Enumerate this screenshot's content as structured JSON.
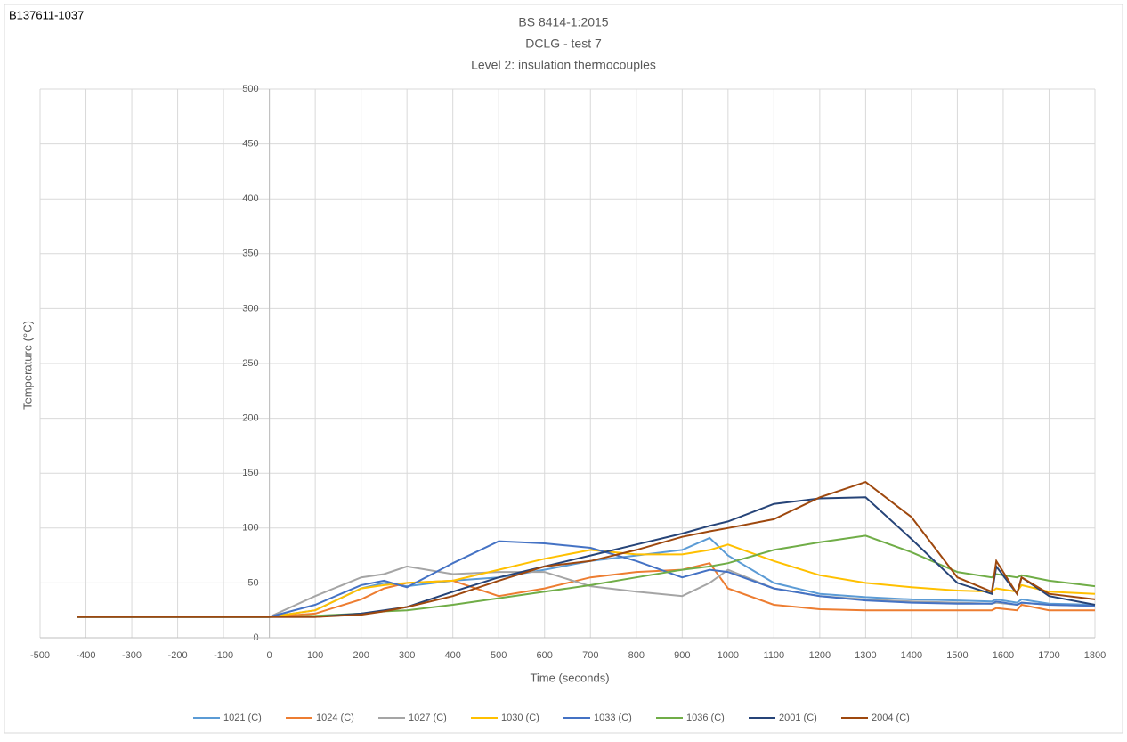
{
  "chart_data": {
    "type": "line",
    "corner_label": "B137611-1037",
    "title": [
      "BS 8414-1:2015",
      "DCLG - test 7",
      "Level 2: insulation thermocouples"
    ],
    "x_label": "Time (seconds)",
    "y_label": "Temperature (°C)",
    "xlim": [
      -500,
      1800
    ],
    "xticks": [
      -500,
      -400,
      -300,
      -200,
      -100,
      0,
      100,
      200,
      300,
      400,
      500,
      600,
      700,
      800,
      900,
      1000,
      1100,
      1200,
      1300,
      1400,
      1500,
      1600,
      1700,
      1800
    ],
    "ylim": [
      0,
      500
    ],
    "yticks": [
      0,
      50,
      100,
      150,
      200,
      250,
      300,
      350,
      400,
      450,
      500
    ],
    "grid": true,
    "legend": "bottom",
    "x": [
      -420,
      0,
      100,
      200,
      250,
      300,
      400,
      500,
      600,
      700,
      800,
      900,
      960,
      1000,
      1100,
      1200,
      1300,
      1400,
      1500,
      1575,
      1585,
      1630,
      1640,
      1700,
      1800
    ],
    "series": [
      {
        "name": "1021 (C)",
        "color": "#5b9bd5",
        "values": [
          19,
          19,
          25,
          45,
          50,
          47,
          52,
          55,
          62,
          70,
          75,
          80,
          91,
          75,
          50,
          40,
          37,
          35,
          34,
          33,
          35,
          32,
          35,
          31,
          30
        ]
      },
      {
        "name": "1024 (C)",
        "color": "#ed7d31",
        "values": [
          19,
          19,
          22,
          35,
          45,
          50,
          52,
          38,
          45,
          55,
          60,
          62,
          68,
          45,
          30,
          26,
          25,
          25,
          25,
          25,
          27,
          25,
          30,
          25,
          25
        ]
      },
      {
        "name": "1027 (C)",
        "color": "#a5a5a5",
        "values": [
          19,
          19,
          38,
          55,
          58,
          65,
          58,
          60,
          60,
          47,
          42,
          38,
          50,
          62,
          45,
          38,
          35,
          33,
          32,
          31,
          32,
          30,
          32,
          30,
          29
        ]
      },
      {
        "name": "1030 (C)",
        "color": "#ffc000",
        "values": [
          19,
          19,
          25,
          45,
          48,
          50,
          52,
          62,
          72,
          80,
          76,
          76,
          80,
          85,
          70,
          57,
          50,
          46,
          43,
          42,
          45,
          42,
          48,
          42,
          40
        ]
      },
      {
        "name": "1033 (C)",
        "color": "#4472c4",
        "values": [
          19,
          19,
          30,
          48,
          52,
          46,
          68,
          88,
          86,
          82,
          70,
          55,
          62,
          60,
          45,
          38,
          34,
          32,
          31,
          31,
          33,
          30,
          32,
          30,
          29
        ]
      },
      {
        "name": "1036 (C)",
        "color": "#70ad47",
        "values": [
          19,
          19,
          20,
          22,
          24,
          25,
          30,
          36,
          42,
          48,
          55,
          62,
          65,
          68,
          80,
          87,
          93,
          78,
          60,
          55,
          58,
          55,
          57,
          52,
          47
        ]
      },
      {
        "name": "2001 (C)",
        "color": "#264478",
        "values": [
          19,
          19,
          19,
          22,
          25,
          28,
          42,
          55,
          65,
          75,
          85,
          95,
          102,
          106,
          122,
          127,
          128,
          90,
          50,
          40,
          65,
          40,
          55,
          38,
          30
        ]
      },
      {
        "name": "2004 (C)",
        "color": "#9e480e",
        "values": [
          19,
          19,
          19,
          21,
          24,
          28,
          38,
          52,
          65,
          70,
          80,
          92,
          97,
          100,
          108,
          128,
          142,
          110,
          55,
          42,
          70,
          40,
          55,
          40,
          35
        ]
      }
    ]
  }
}
